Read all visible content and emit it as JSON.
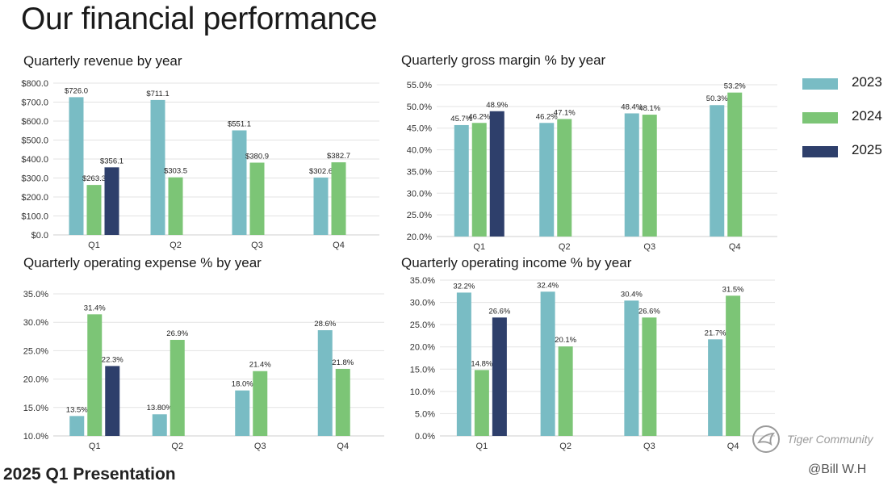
{
  "page": {
    "title": "Our financial performance"
  },
  "legend": [
    {
      "label": "2023",
      "color": "#79BCC4"
    },
    {
      "label": "2024",
      "color": "#7CC576"
    },
    {
      "label": "2025",
      "color": "#2E3F6B"
    }
  ],
  "footer": {
    "presentation": "2025 Q1 Presentation",
    "watermark": "Tiger Community",
    "credit": "@Bill W.H"
  },
  "chart_data": [
    {
      "id": "revenue",
      "type": "bar",
      "title": "Quarterly revenue by year",
      "categories": [
        "Q1",
        "Q2",
        "Q3",
        "Q4"
      ],
      "series": [
        {
          "name": "2023",
          "values": [
            726.0,
            711.1,
            551.1,
            302.6
          ]
        },
        {
          "name": "2024",
          "values": [
            263.3,
            303.5,
            380.9,
            382.7
          ]
        },
        {
          "name": "2025",
          "values": [
            356.1,
            null,
            null,
            null
          ]
        }
      ],
      "value_labels": [
        [
          "$726.0",
          "$711.1",
          "$551.1",
          "$302.6"
        ],
        [
          "$263.3",
          "$303.5",
          "$380.9",
          "$382.7"
        ],
        [
          "$356.1",
          null,
          null,
          null
        ]
      ],
      "yticks": [
        "$0.0",
        "$100.0",
        "$200.0",
        "$300.0",
        "$400.0",
        "$500.0",
        "$600.0",
        "$700.0",
        "$800.0"
      ],
      "ylim": [
        0,
        800
      ],
      "xlabel": "",
      "ylabel": ""
    },
    {
      "id": "gross_margin",
      "type": "bar",
      "title": "Quarterly gross margin % by year",
      "categories": [
        "Q1",
        "Q2",
        "Q3",
        "Q4"
      ],
      "series": [
        {
          "name": "2023",
          "values": [
            45.7,
            46.2,
            48.4,
            50.3
          ]
        },
        {
          "name": "2024",
          "values": [
            46.2,
            47.1,
            48.1,
            53.2
          ]
        },
        {
          "name": "2025",
          "values": [
            48.9,
            null,
            null,
            null
          ]
        }
      ],
      "value_labels": [
        [
          "45.7%",
          "46.2%",
          "48.4%",
          "50.3%"
        ],
        [
          "46.2%",
          "47.1%",
          "48.1%",
          "53.2%"
        ],
        [
          "48.9%",
          null,
          null,
          null
        ]
      ],
      "yticks": [
        "20.0%",
        "25.0%",
        "30.0%",
        "35.0%",
        "40.0%",
        "45.0%",
        "50.0%",
        "55.0%"
      ],
      "ylim": [
        20,
        55
      ],
      "xlabel": "",
      "ylabel": ""
    },
    {
      "id": "opex",
      "type": "bar",
      "title": "Quarterly operating expense % by year",
      "categories": [
        "Q1",
        "Q2",
        "Q3",
        "Q4"
      ],
      "series": [
        {
          "name": "2023",
          "values": [
            13.5,
            13.8,
            18.0,
            28.6
          ]
        },
        {
          "name": "2024",
          "values": [
            31.4,
            26.9,
            21.4,
            21.8
          ]
        },
        {
          "name": "2025",
          "values": [
            22.3,
            null,
            null,
            null
          ]
        }
      ],
      "value_labels": [
        [
          "13.5%",
          "13.80%",
          "18.0%",
          "28.6%"
        ],
        [
          "31.4%",
          "26.9%",
          "21.4%",
          "21.8%"
        ],
        [
          "22.3%",
          null,
          null,
          null
        ]
      ],
      "yticks": [
        "10.0%",
        "15.0%",
        "20.0%",
        "25.0%",
        "30.0%",
        "35.0%"
      ],
      "ylim": [
        10,
        35
      ],
      "xlabel": "",
      "ylabel": ""
    },
    {
      "id": "op_income",
      "type": "bar",
      "title": "Quarterly operating income % by year",
      "categories": [
        "Q1",
        "Q2",
        "Q3",
        "Q4"
      ],
      "series": [
        {
          "name": "2023",
          "values": [
            32.2,
            32.4,
            30.4,
            21.7
          ]
        },
        {
          "name": "2024",
          "values": [
            14.8,
            20.1,
            26.6,
            31.5
          ]
        },
        {
          "name": "2025",
          "values": [
            26.6,
            null,
            null,
            null
          ]
        }
      ],
      "value_labels": [
        [
          "32.2%",
          "32.4%",
          "30.4%",
          "21.7%"
        ],
        [
          "14.8%",
          "20.1%",
          "26.6%",
          "31.5%"
        ],
        [
          "26.6%",
          null,
          null,
          null
        ]
      ],
      "yticks": [
        "0.0%",
        "5.0%",
        "10.0%",
        "15.0%",
        "20.0%",
        "25.0%",
        "30.0%",
        "35.0%"
      ],
      "ylim": [
        0,
        35
      ],
      "xlabel": "",
      "ylabel": ""
    }
  ]
}
